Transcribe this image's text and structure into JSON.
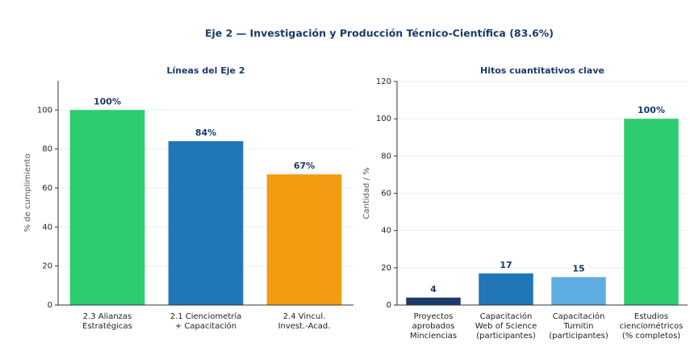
{
  "title": "Eje 2 — Investigación y Producción Técnico-Científica (83.6%)",
  "chart_data": [
    {
      "type": "bar",
      "title": "Líneas del Eje 2",
      "y_label": "% de cumplimiento",
      "categories": [
        "2.3 Alianzas\nEstratégicas",
        "2.1 Cienciometría\n+ Capacitación",
        "2.4 Vincul.\nInvest.-Acad."
      ],
      "values": [
        100,
        84,
        67
      ],
      "value_labels": [
        "100%",
        "84%",
        "67%"
      ],
      "colors": [
        "#2ecc71",
        "#2176b8",
        "#f39c12"
      ],
      "ylim": [
        0,
        115
      ],
      "yticks": [
        0,
        20,
        40,
        60,
        80,
        100
      ],
      "grid": true
    },
    {
      "type": "bar",
      "title": "Hitos cuantitativos clave",
      "y_label": "Cantidad / %",
      "categories": [
        "Proyectos\naprobados\nMinciencias",
        "Capacitación\nWeb of Science\n(participantes)",
        "Capacitación\nTurnitin\n(participantes)",
        "Estudios\ncienciométricos\n(% completos)"
      ],
      "values": [
        4,
        17,
        15,
        100
      ],
      "value_labels": [
        "4",
        "17",
        "15",
        "100%"
      ],
      "colors": [
        "#1a3a6b",
        "#2176b8",
        "#5dade2",
        "#2ecc71"
      ],
      "ylim": [
        0,
        120
      ],
      "yticks": [
        0,
        20,
        40,
        60,
        80,
        100,
        120
      ],
      "grid": true
    }
  ]
}
